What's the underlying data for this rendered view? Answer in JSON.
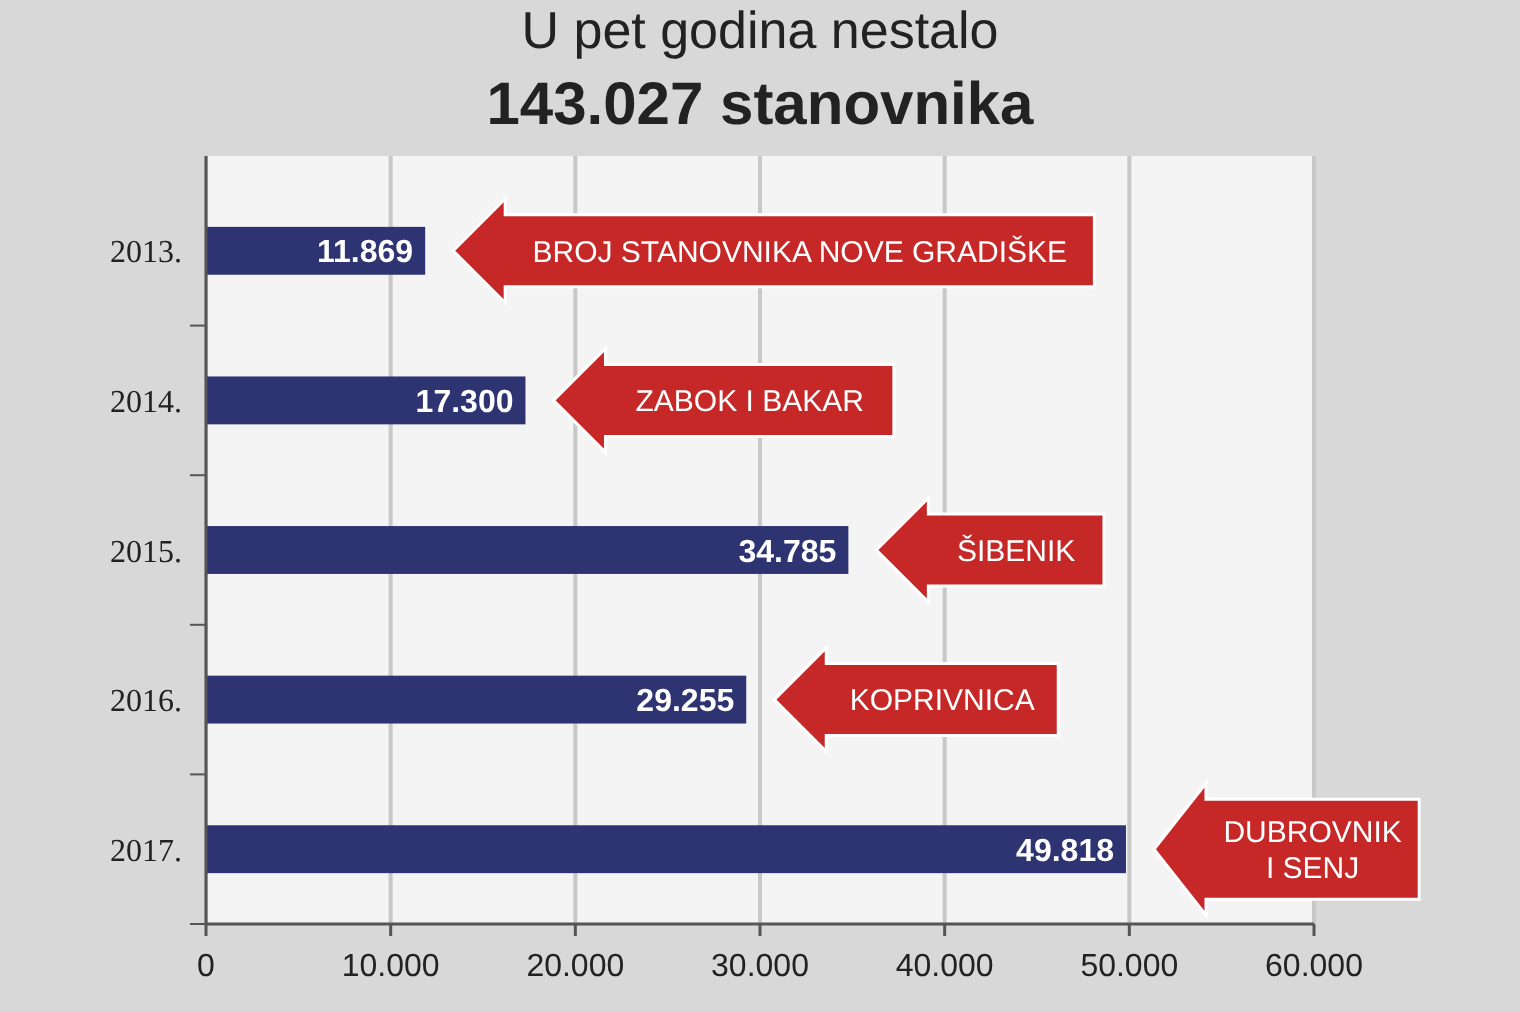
{
  "chart_data": {
    "type": "bar",
    "orientation": "horizontal",
    "title": "U pet godina nestalo",
    "subtitle": "143.027 stanovnika",
    "categories": [
      "2013.",
      "2014.",
      "2015.",
      "2016.",
      "2017."
    ],
    "values": [
      11869,
      17300,
      34785,
      29255,
      49818
    ],
    "value_labels": [
      "11.869",
      "17.300",
      "34.785",
      "29.255",
      "49.818"
    ],
    "color": "#2e3372",
    "xlim": [
      0,
      60000
    ],
    "xticks": [
      {
        "value": 0,
        "label": "0"
      },
      {
        "value": 10000,
        "label": "10.000"
      },
      {
        "value": 20000,
        "label": "20.000"
      },
      {
        "value": 30000,
        "label": "30.000"
      },
      {
        "value": 40000,
        "label": "40.000"
      },
      {
        "value": 50000,
        "label": "50.000"
      },
      {
        "value": 60000,
        "label": "60.000"
      }
    ],
    "grid": "x",
    "annotations": [
      "BROJ STANOVNIKA NOVE GRADIŠKE",
      "ZABOK I BAKAR",
      "ŠIBENIK",
      "KOPRIVNICA",
      "DUBROVNIK\nI SENJ"
    ]
  }
}
